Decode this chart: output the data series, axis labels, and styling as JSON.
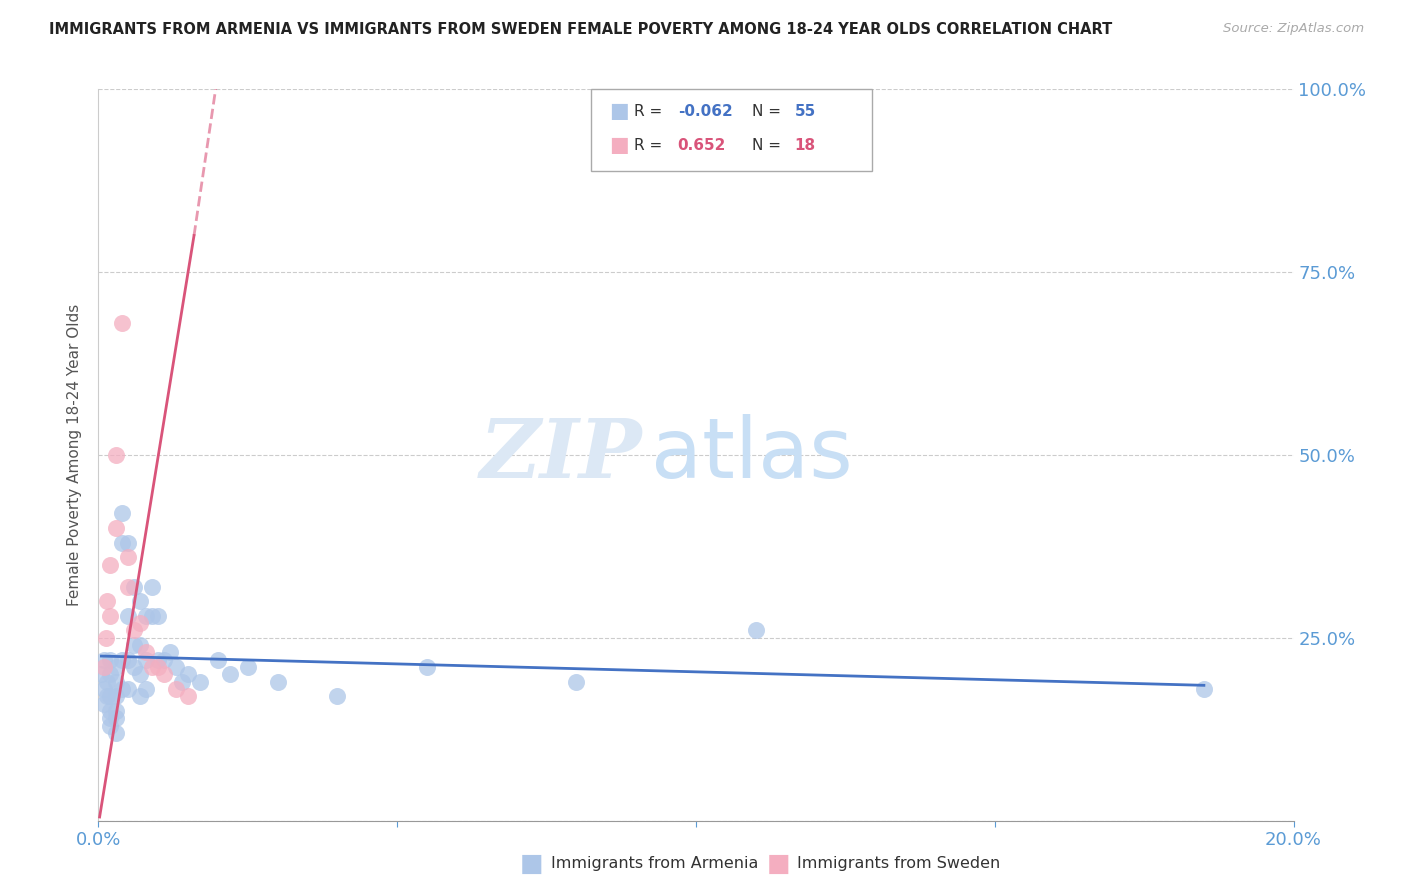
{
  "title": "IMMIGRANTS FROM ARMENIA VS IMMIGRANTS FROM SWEDEN FEMALE POVERTY AMONG 18-24 YEAR OLDS CORRELATION CHART",
  "source": "Source: ZipAtlas.com",
  "ylabel": "Female Poverty Among 18-24 Year Olds",
  "xlim": [
    0,
    0.2
  ],
  "ylim": [
    0,
    1.0
  ],
  "R_armenia": -0.062,
  "N_armenia": 55,
  "R_sweden": 0.652,
  "N_sweden": 18,
  "armenia_color": "#adc6e8",
  "sweden_color": "#f4aec0",
  "trend_armenia_color": "#4472c4",
  "trend_sweden_color": "#d9547a",
  "legend_armenia_color": "#adc6e8",
  "legend_sweden_color": "#f4aec0",
  "axis_label_color": "#5b9bd5",
  "tick_color": "#5b9bd5",
  "watermark": "ZIPatlas",
  "watermark_color": "#dce8f5",
  "background_color": "#ffffff",
  "armenia_x": [
    0.0005,
    0.001,
    0.001,
    0.001,
    0.0015,
    0.0015,
    0.002,
    0.002,
    0.002,
    0.002,
    0.002,
    0.002,
    0.003,
    0.003,
    0.003,
    0.003,
    0.003,
    0.003,
    0.004,
    0.004,
    0.004,
    0.004,
    0.005,
    0.005,
    0.005,
    0.005,
    0.006,
    0.006,
    0.006,
    0.007,
    0.007,
    0.007,
    0.007,
    0.008,
    0.008,
    0.008,
    0.009,
    0.009,
    0.01,
    0.01,
    0.011,
    0.012,
    0.013,
    0.014,
    0.015,
    0.017,
    0.02,
    0.022,
    0.025,
    0.03,
    0.04,
    0.055,
    0.08,
    0.11,
    0.185
  ],
  "armenia_y": [
    0.2,
    0.18,
    0.22,
    0.16,
    0.19,
    0.17,
    0.22,
    0.2,
    0.17,
    0.15,
    0.14,
    0.13,
    0.21,
    0.19,
    0.17,
    0.15,
    0.14,
    0.12,
    0.42,
    0.38,
    0.22,
    0.18,
    0.38,
    0.28,
    0.22,
    0.18,
    0.32,
    0.24,
    0.21,
    0.3,
    0.24,
    0.2,
    0.17,
    0.28,
    0.22,
    0.18,
    0.32,
    0.28,
    0.28,
    0.22,
    0.22,
    0.23,
    0.21,
    0.19,
    0.2,
    0.19,
    0.22,
    0.2,
    0.21,
    0.19,
    0.17,
    0.21,
    0.19,
    0.26,
    0.18
  ],
  "sweden_x": [
    0.001,
    0.0012,
    0.0015,
    0.002,
    0.002,
    0.003,
    0.003,
    0.004,
    0.005,
    0.005,
    0.006,
    0.007,
    0.008,
    0.009,
    0.01,
    0.011,
    0.013,
    0.015
  ],
  "sweden_y": [
    0.21,
    0.25,
    0.3,
    0.35,
    0.28,
    0.5,
    0.4,
    0.68,
    0.36,
    0.32,
    0.26,
    0.27,
    0.23,
    0.21,
    0.21,
    0.2,
    0.18,
    0.17
  ],
  "sweden_trend_x0": 0.0002,
  "sweden_trend_y0": 0.005,
  "sweden_trend_x1": 0.016,
  "sweden_trend_y1": 0.8,
  "armenia_trend_x0": 0.0005,
  "armenia_trend_x1": 0.185,
  "armenia_trend_y0": 0.225,
  "armenia_trend_y1": 0.185
}
